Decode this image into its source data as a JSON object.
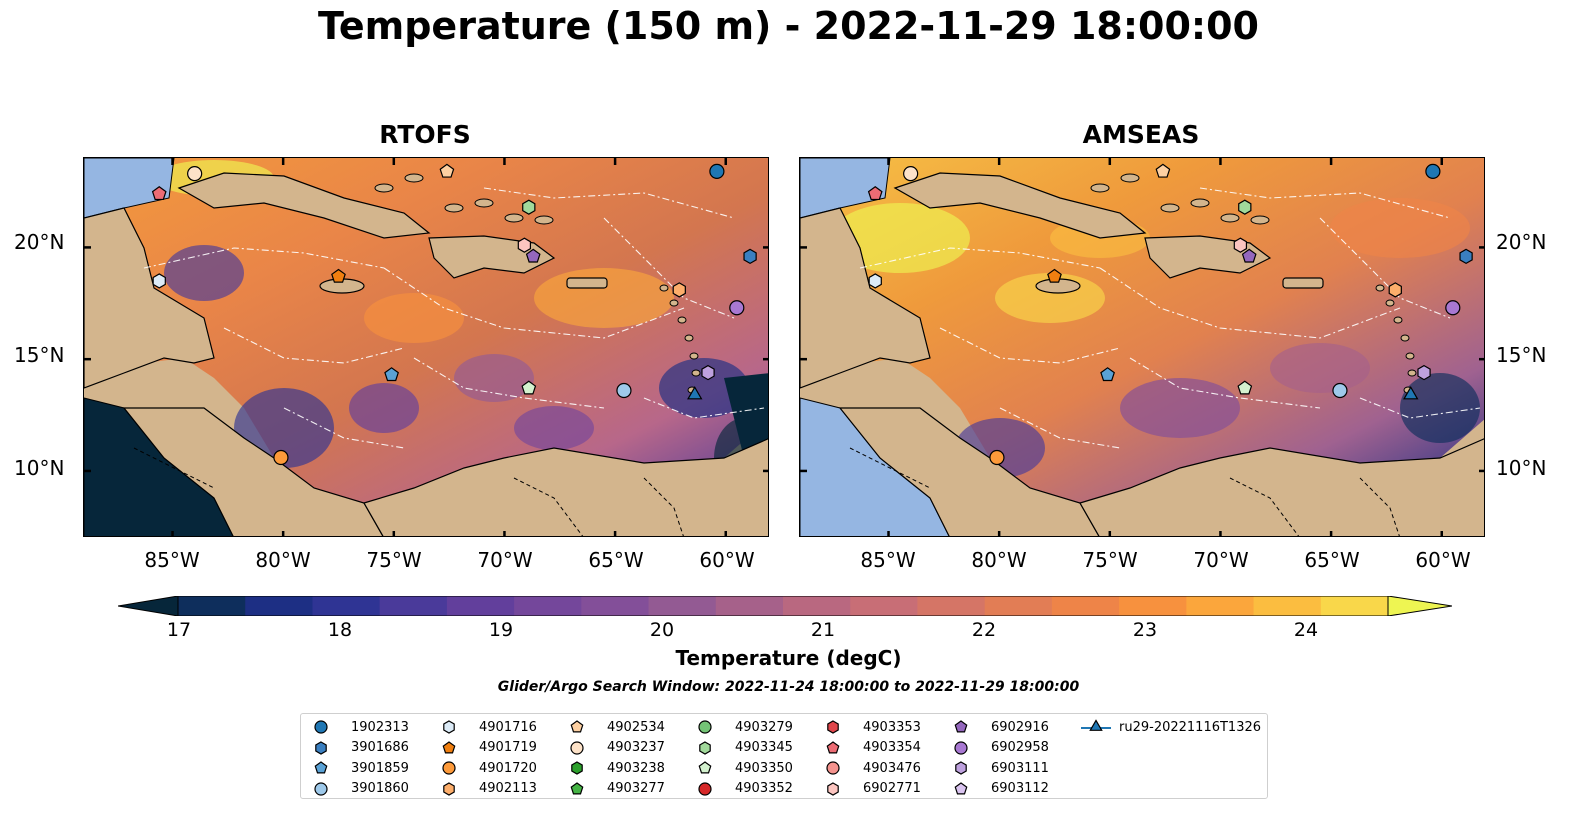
{
  "title": "Temperature (150 m) - 2022-11-29 18:00:00",
  "panels": [
    {
      "name": "RTOFS"
    },
    {
      "name": "AMSEAS"
    }
  ],
  "lat_labels": [
    "20°N",
    "15°N",
    "10°N"
  ],
  "lon_labels": [
    "85°W",
    "80°W",
    "75°W",
    "70°W",
    "65°W",
    "60°W"
  ],
  "colorbar": {
    "label": "Temperature (degC)",
    "min": 17,
    "max": 24,
    "ticks": [
      "17",
      "18",
      "19",
      "20",
      "21",
      "22",
      "23",
      "24"
    ],
    "colors": [
      "#06263a",
      "#0e2e5c",
      "#1d2f84",
      "#2f3494",
      "#4a3a9a",
      "#623f9c",
      "#74479b",
      "#834f99",
      "#935a93",
      "#a6618a",
      "#b96880",
      "#c86e76",
      "#d57566",
      "#e27d55",
      "#ee8448",
      "#f7913e",
      "#fba63c",
      "#fbbd40",
      "#f9d74a",
      "#eef552"
    ]
  },
  "search_window": "Glider/Argo Search Window: 2022-11-24 18:00:00 to 2022-11-29 18:00:00",
  "legend": [
    {
      "id": "1902313",
      "marker": "circle",
      "color": "#1f77b4"
    },
    {
      "id": "3901686",
      "marker": "hexagon",
      "color": "#3a7fc0"
    },
    {
      "id": "3901859",
      "marker": "pentagon",
      "color": "#5aa2d6"
    },
    {
      "id": "3901860",
      "marker": "circle",
      "color": "#9ec9ea"
    },
    {
      "id": "4901716",
      "marker": "hexagon",
      "color": "#dcebf7"
    },
    {
      "id": "4901719",
      "marker": "pentagon",
      "color": "#f07f10"
    },
    {
      "id": "4901720",
      "marker": "circle",
      "color": "#fd9a3a"
    },
    {
      "id": "4902113",
      "marker": "hexagon",
      "color": "#fdae6b"
    },
    {
      "id": "4902534",
      "marker": "pentagon",
      "color": "#fdd0a2"
    },
    {
      "id": "4903237",
      "marker": "circle",
      "color": "#fde2c8"
    },
    {
      "id": "4903238",
      "marker": "hexagon",
      "color": "#2ca02c"
    },
    {
      "id": "4903277",
      "marker": "pentagon",
      "color": "#45b445"
    },
    {
      "id": "4903279",
      "marker": "circle",
      "color": "#74c476"
    },
    {
      "id": "4903345",
      "marker": "hexagon",
      "color": "#a1d99b"
    },
    {
      "id": "4903350",
      "marker": "pentagon",
      "color": "#d4f2cf"
    },
    {
      "id": "4903352",
      "marker": "circle",
      "color": "#d62728"
    },
    {
      "id": "4903353",
      "marker": "hexagon",
      "color": "#e0474c"
    },
    {
      "id": "4903354",
      "marker": "pentagon",
      "color": "#ec6c74"
    },
    {
      "id": "4903476",
      "marker": "circle",
      "color": "#f4938e"
    },
    {
      "id": "6902771",
      "marker": "hexagon",
      "color": "#fcc5c0"
    },
    {
      "id": "6902916",
      "marker": "pentagon",
      "color": "#9467bd"
    },
    {
      "id": "6902958",
      "marker": "circle",
      "color": "#a878d2"
    },
    {
      "id": "6903111",
      "marker": "hexagon",
      "color": "#bea1de"
    },
    {
      "id": "6903112",
      "marker": "pentagon",
      "color": "#dac4f0"
    },
    {
      "id": "ru29-20221116T1326",
      "marker": "triangle-line",
      "color": "#1f77b4"
    }
  ],
  "map_markers": [
    {
      "legend": "4903354",
      "lon": -85.6,
      "lat": 22.4
    },
    {
      "legend": "4903237",
      "lon": -84.0,
      "lat": 23.3
    },
    {
      "legend": "4902534",
      "lon": -72.6,
      "lat": 23.4
    },
    {
      "legend": "1902313",
      "lon": -60.4,
      "lat": 23.4
    },
    {
      "legend": "4903345",
      "lon": -68.9,
      "lat": 21.8
    },
    {
      "legend": "6902771",
      "lon": -69.1,
      "lat": 20.1
    },
    {
      "legend": "6902916",
      "lon": -68.7,
      "lat": 19.6
    },
    {
      "legend": "3901686",
      "lon": -58.9,
      "lat": 19.6
    },
    {
      "legend": "4901716",
      "lon": -85.6,
      "lat": 18.5
    },
    {
      "legend": "4901719",
      "lon": -77.5,
      "lat": 18.7
    },
    {
      "legend": "4902113",
      "lon": -62.1,
      "lat": 18.1
    },
    {
      "legend": "6902958",
      "lon": -59.5,
      "lat": 17.3
    },
    {
      "legend": "3901859",
      "lon": -75.1,
      "lat": 14.3
    },
    {
      "legend": "6903111",
      "lon": -60.8,
      "lat": 14.4
    },
    {
      "legend": "4903350",
      "lon": -68.9,
      "lat": 13.7
    },
    {
      "legend": "3901860",
      "lon": -64.6,
      "lat": 13.6
    },
    {
      "legend": "ru29-20221116T1326",
      "lon": -61.4,
      "lat": 13.4
    },
    {
      "legend": "4901720",
      "lon": -80.1,
      "lat": 10.6
    }
  ]
}
